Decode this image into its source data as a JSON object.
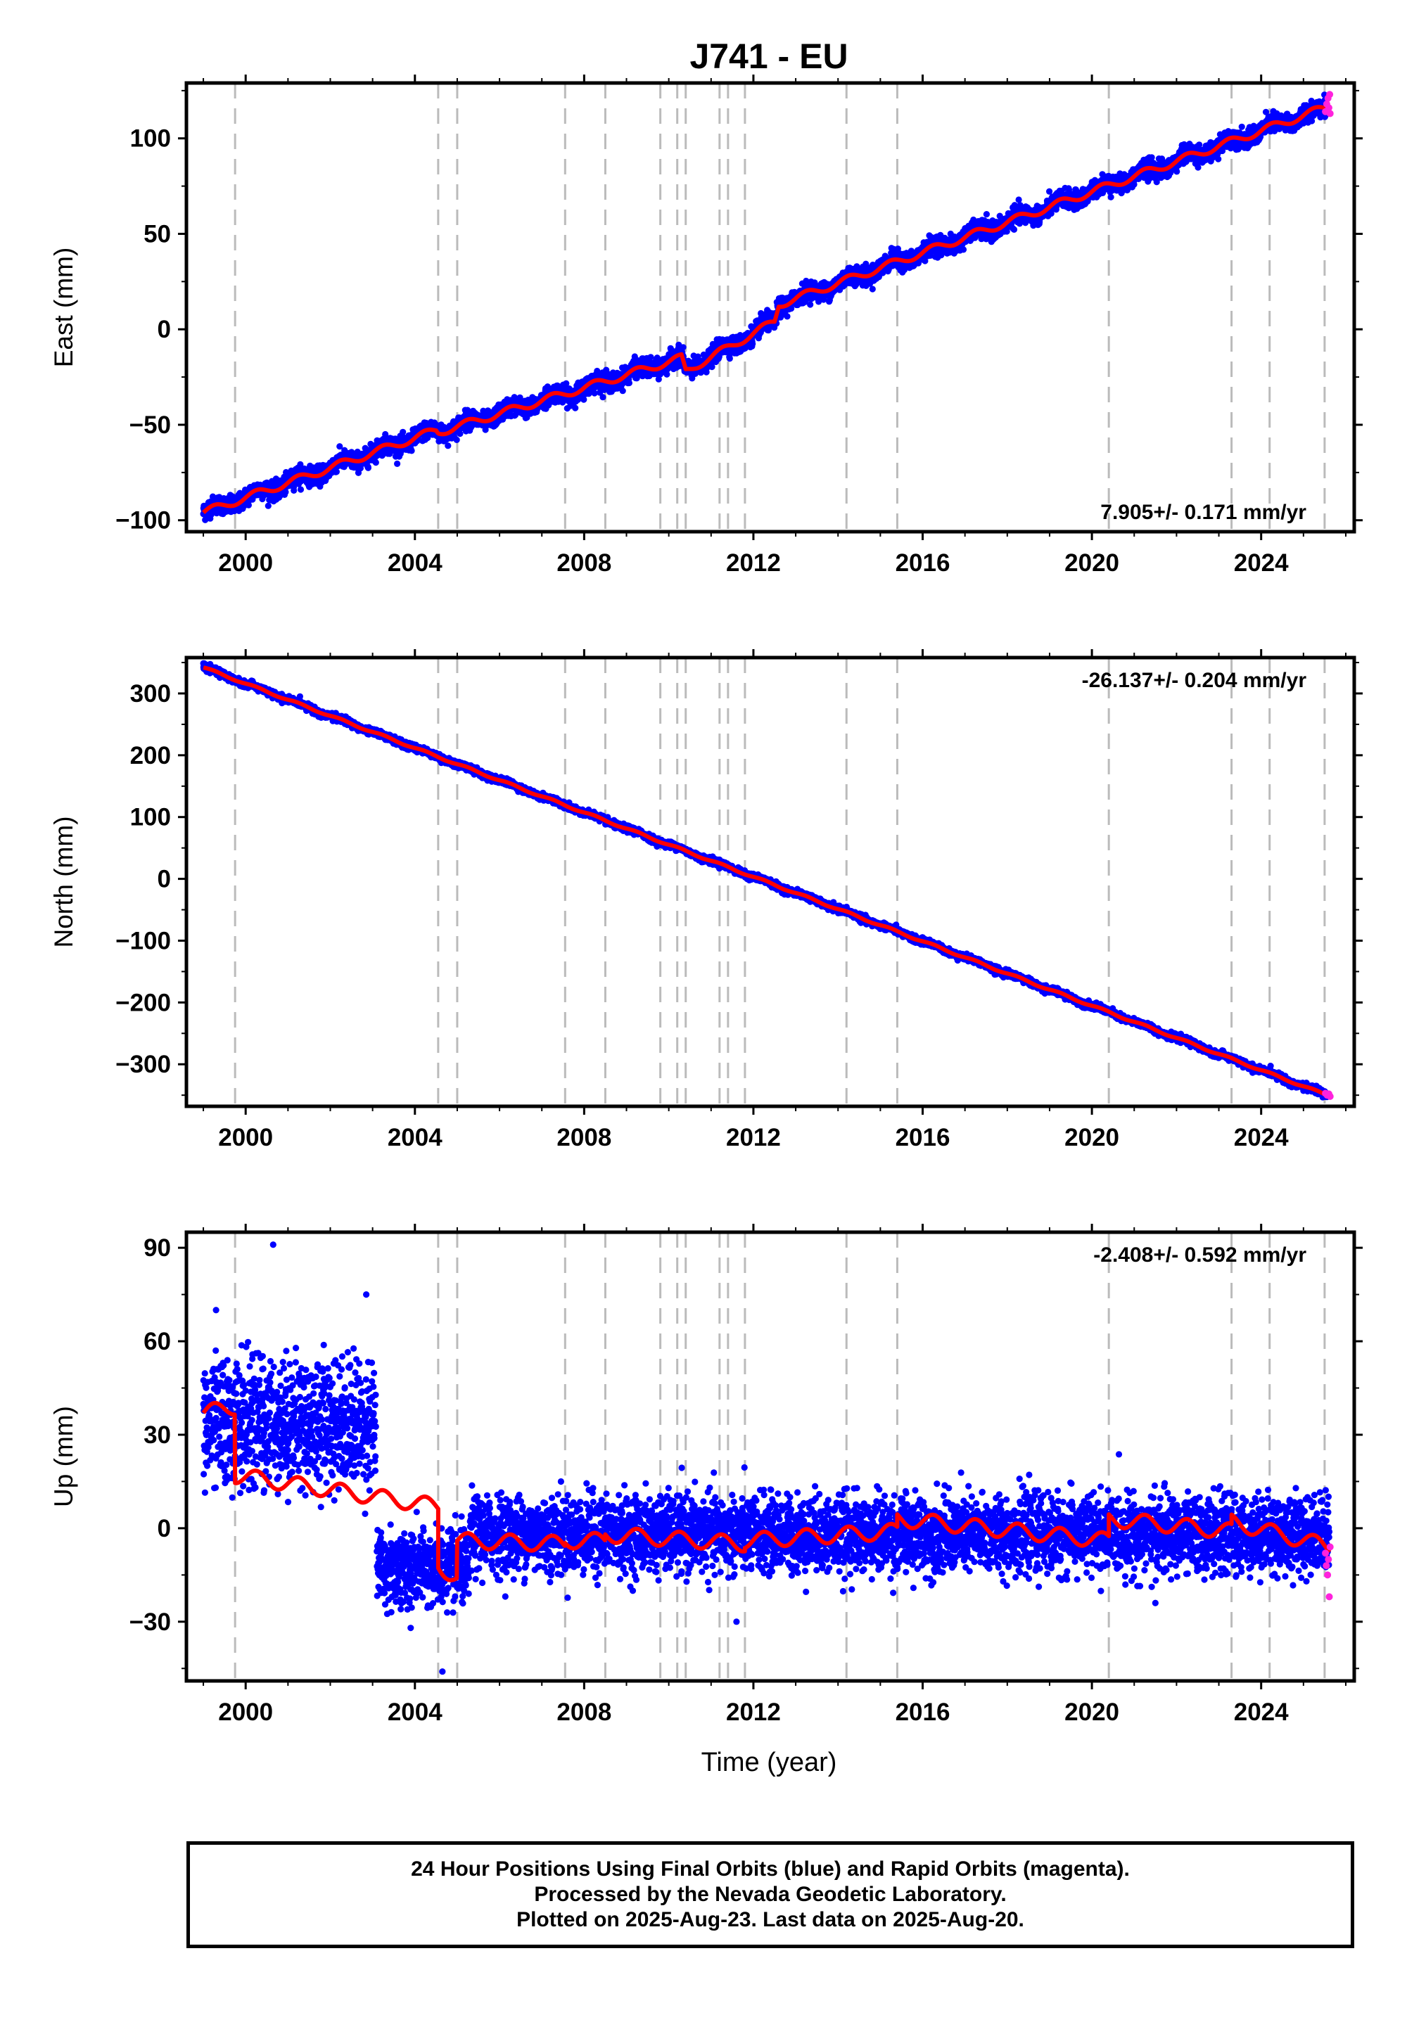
{
  "title": "J741 - EU",
  "xlabel": "Time (year)",
  "colors": {
    "final_orbits": "#0000ff",
    "rapid_orbits": "#ff22dd",
    "model": "#ff0000",
    "events": "#bbbbbb"
  },
  "footer": {
    "line1": "24 Hour Positions Using Final Orbits (blue) and Rapid Orbits (magenta).",
    "line2": "Processed by the Nevada Geodetic Laboratory.",
    "line3": "Plotted on 2025-Aug-23. Last data on 2025-Aug-20."
  },
  "chart_data": [
    {
      "type": "scatter",
      "component": "east",
      "ylabel": "East (mm)",
      "xlim": [
        1998.6,
        2026.2
      ],
      "ylim": [
        -106,
        129
      ],
      "x_ticks": [
        2000,
        2004,
        2008,
        2012,
        2016,
        2020,
        2024
      ],
      "y_ticks": [
        -100,
        -50,
        0,
        50,
        100
      ],
      "rate_label": "7.905+/- 0.171 mm/yr",
      "rate_position": "bottom-right",
      "event_lines": [
        1999.75,
        2004.55,
        2005.0,
        2007.55,
        2008.5,
        2009.8,
        2010.2,
        2010.4,
        2011.2,
        2011.4,
        2011.8,
        2014.2,
        2015.4,
        2020.4,
        2023.3,
        2024.2,
        2025.5
      ],
      "trend": {
        "start_year": 1999.0,
        "end_year": 2025.63,
        "anchors_x": [
          1999.0,
          2004.5,
          2004.55,
          2010.3,
          2010.4,
          2012.5,
          2012.6,
          2025.63
        ],
        "anchors_y": [
          -96,
          -53,
          -54,
          -15,
          -22,
          4,
          13,
          117
        ],
        "seasonal_amplitude": 2.0,
        "noise_sd": 2.3
      },
      "rapid_points": [
        [
          2025.52,
          114
        ],
        [
          2025.55,
          118
        ],
        [
          2025.58,
          121
        ],
        [
          2025.6,
          116
        ],
        [
          2025.62,
          123
        ],
        [
          2025.63,
          113
        ]
      ]
    },
    {
      "type": "scatter",
      "component": "north",
      "ylabel": "North (mm)",
      "xlim": [
        1998.6,
        2026.2
      ],
      "ylim": [
        -368,
        358
      ],
      "x_ticks": [
        2000,
        2004,
        2008,
        2012,
        2016,
        2020,
        2024
      ],
      "y_ticks": [
        -300,
        -200,
        -100,
        0,
        100,
        200,
        300
      ],
      "rate_label": "-26.137+/- 0.204 mm/yr",
      "rate_position": "top-right",
      "event_lines": [
        1999.75,
        2004.55,
        2005.0,
        2007.55,
        2008.5,
        2009.8,
        2010.2,
        2010.4,
        2011.2,
        2011.4,
        2011.8,
        2014.2,
        2015.4,
        2020.4,
        2023.3,
        2024.2,
        2025.5
      ],
      "trend": {
        "start_year": 1999.0,
        "end_year": 2025.63,
        "anchors_x": [
          1999.0,
          2025.63
        ],
        "anchors_y": [
          342,
          -352
        ],
        "seasonal_amplitude": 1.5,
        "noise_sd": 2.6
      },
      "rapid_points": [
        [
          2025.52,
          -347
        ],
        [
          2025.56,
          -350
        ],
        [
          2025.6,
          -348
        ],
        [
          2025.63,
          -352
        ]
      ]
    },
    {
      "type": "scatter",
      "component": "up",
      "ylabel": "Up (mm)",
      "xlim": [
        1998.6,
        2026.2
      ],
      "ylim": [
        -49,
        95
      ],
      "x_ticks": [
        2000,
        2004,
        2008,
        2012,
        2016,
        2020,
        2024
      ],
      "y_ticks": [
        -30,
        0,
        30,
        60,
        90
      ],
      "rate_label": "-2.408+/- 0.592 mm/yr",
      "rate_position": "top-right",
      "event_lines": [
        1999.75,
        2004.55,
        2005.0,
        2007.55,
        2008.5,
        2009.8,
        2010.2,
        2010.4,
        2011.2,
        2011.4,
        2011.8,
        2014.2,
        2015.4,
        2020.4,
        2023.3,
        2024.2,
        2025.5
      ],
      "model_segments": [
        {
          "x0": 1999.0,
          "x1": 1999.75,
          "y0": 37,
          "y1": 39
        },
        {
          "x0": 1999.75,
          "x1": 2004.55,
          "y0": 17,
          "y1": 7
        },
        {
          "x0": 2004.55,
          "x1": 2005.0,
          "y0": -12,
          "y1": -16
        },
        {
          "x0": 2005.0,
          "x1": 2007.55,
          "y0": -4,
          "y1": -5
        },
        {
          "x0": 2007.55,
          "x1": 2008.5,
          "y0": -4,
          "y1": -4
        },
        {
          "x0": 2008.5,
          "x1": 2011.8,
          "y0": -2,
          "y1": -5
        },
        {
          "x0": 2011.8,
          "x1": 2015.4,
          "y0": -4,
          "y1": -1
        },
        {
          "x0": 2015.4,
          "x1": 2020.4,
          "y0": 3,
          "y1": -4
        },
        {
          "x0": 2020.4,
          "x1": 2023.3,
          "y0": 3,
          "y1": -1
        },
        {
          "x0": 2023.3,
          "x1": 2025.63,
          "y0": 2,
          "y1": -6
        }
      ],
      "data_segments": [
        {
          "x0": 1999.0,
          "x1": 2003.1,
          "mean": 34,
          "sd": 10
        },
        {
          "x0": 2003.1,
          "x1": 2005.3,
          "mean": -13,
          "sd": 6
        },
        {
          "x0": 2005.3,
          "x1": 2025.63,
          "mean": -2,
          "sd": 6
        }
      ],
      "model_seasonal_amplitude": 2.5,
      "outliers": [
        [
          2000.65,
          91
        ],
        [
          1999.3,
          70
        ],
        [
          2002.85,
          75
        ],
        [
          2004.65,
          -46
        ],
        [
          2003.9,
          -32
        ],
        [
          2011.6,
          -30
        ],
        [
          2021.5,
          -24
        ]
      ],
      "rapid_points": [
        [
          2025.52,
          -8
        ],
        [
          2025.54,
          -12
        ],
        [
          2025.57,
          -15
        ],
        [
          2025.59,
          -10
        ],
        [
          2025.61,
          -22
        ],
        [
          2025.63,
          -6
        ]
      ]
    }
  ]
}
